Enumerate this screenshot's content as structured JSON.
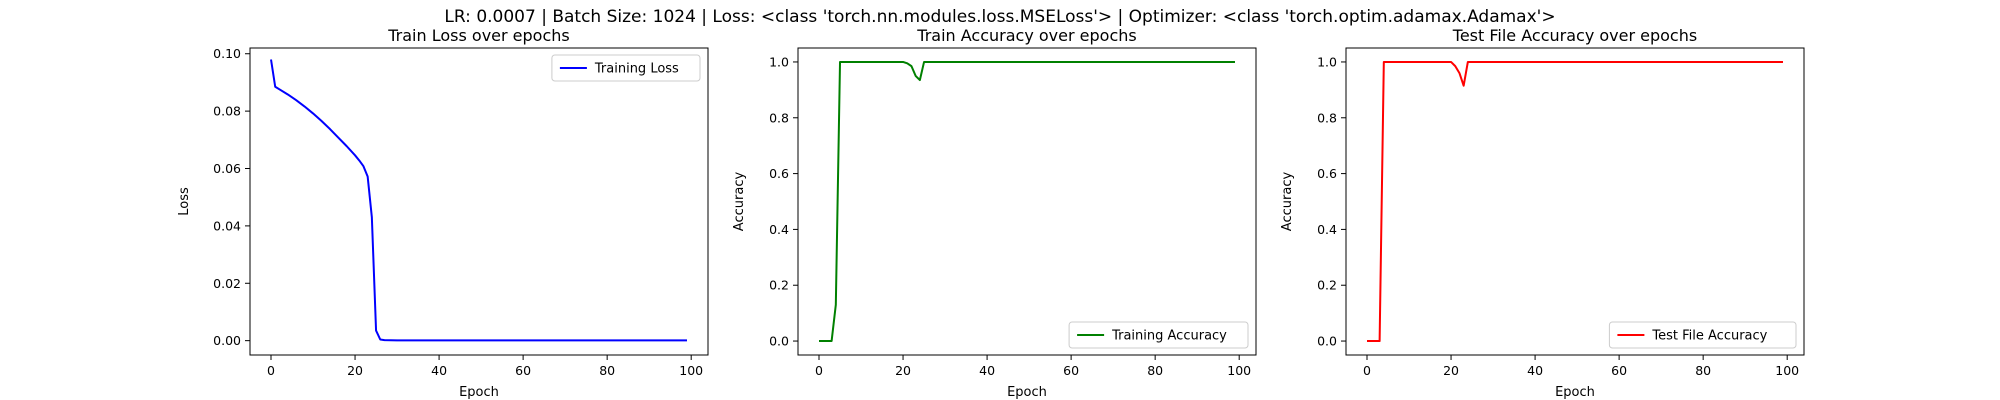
{
  "figure": {
    "suptitle": "LR: 0.0007 | Batch Size: 1024 | Loss: <class 'torch.nn.modules.loss.MSELoss'> | Optimizer: <class 'torch.optim.adamax.Adamax'>"
  },
  "chart_data": [
    {
      "type": "line",
      "title": "Train Loss over epochs",
      "xlabel": "Epoch",
      "ylabel": "Loss",
      "xlim": [
        -5,
        104
      ],
      "ylim": [
        -0.005,
        0.102
      ],
      "xticks": [
        0,
        20,
        40,
        60,
        80,
        100
      ],
      "yticks": [
        0.0,
        0.02,
        0.04,
        0.06,
        0.08,
        0.1
      ],
      "ytick_labels": [
        "0.00",
        "0.02",
        "0.04",
        "0.06",
        "0.08",
        "0.10"
      ],
      "legend_position": "upper-right",
      "grid": false,
      "series": [
        {
          "name": "Training Loss",
          "color": "#0000ff",
          "x": [
            0,
            1,
            2,
            4,
            6,
            8,
            10,
            12,
            14,
            16,
            18,
            20,
            21,
            22,
            23,
            24,
            25,
            26,
            27,
            30,
            40,
            50,
            60,
            70,
            80,
            90,
            99
          ],
          "y": [
            0.098,
            0.0885,
            0.0876,
            0.0858,
            0.0838,
            0.0816,
            0.0792,
            0.0766,
            0.0738,
            0.0708,
            0.0678,
            0.0646,
            0.0628,
            0.0608,
            0.0572,
            0.043,
            0.0035,
            0.0004,
            0.0002,
            0.0001,
            0.0001,
            0.0001,
            0.0001,
            0.0001,
            0.0001,
            0.0001,
            0.0001
          ]
        }
      ]
    },
    {
      "type": "line",
      "title": "Train Accuracy over epochs",
      "xlabel": "Epoch",
      "ylabel": "Accuracy",
      "xlim": [
        -5,
        104
      ],
      "ylim": [
        -0.05,
        1.05
      ],
      "xticks": [
        0,
        20,
        40,
        60,
        80,
        100
      ],
      "yticks": [
        0.0,
        0.2,
        0.4,
        0.6,
        0.8,
        1.0
      ],
      "ytick_labels": [
        "0.0",
        "0.2",
        "0.4",
        "0.6",
        "0.8",
        "1.0"
      ],
      "legend_position": "lower-right",
      "grid": false,
      "series": [
        {
          "name": "Training Accuracy",
          "color": "#008000",
          "x": [
            0,
            1,
            2,
            3,
            4,
            5,
            6,
            10,
            15,
            20,
            21,
            22,
            23,
            24,
            25,
            26,
            30,
            40,
            50,
            60,
            70,
            80,
            90,
            99
          ],
          "y": [
            0.0,
            0.0,
            0.0,
            0.0,
            0.13,
            1.0,
            1.0,
            1.0,
            1.0,
            1.0,
            0.995,
            0.985,
            0.95,
            0.935,
            1.0,
            1.0,
            1.0,
            1.0,
            1.0,
            1.0,
            1.0,
            1.0,
            1.0,
            1.0
          ]
        }
      ]
    },
    {
      "type": "line",
      "title": "Test File Accuracy over epochs",
      "xlabel": "Epoch",
      "ylabel": "Accuracy",
      "xlim": [
        -5,
        104
      ],
      "ylim": [
        -0.05,
        1.05
      ],
      "xticks": [
        0,
        20,
        40,
        60,
        80,
        100
      ],
      "yticks": [
        0.0,
        0.2,
        0.4,
        0.6,
        0.8,
        1.0
      ],
      "ytick_labels": [
        "0.0",
        "0.2",
        "0.4",
        "0.6",
        "0.8",
        "1.0"
      ],
      "legend_position": "lower-right",
      "grid": false,
      "series": [
        {
          "name": "Test File Accuracy",
          "color": "#ff0000",
          "x": [
            0,
            1,
            2,
            3,
            4,
            5,
            10,
            15,
            20,
            21,
            22,
            23,
            24,
            25,
            30,
            40,
            50,
            60,
            70,
            80,
            90,
            99
          ],
          "y": [
            0.0,
            0.0,
            0.0,
            0.0,
            1.0,
            1.0,
            1.0,
            1.0,
            1.0,
            0.985,
            0.96,
            0.915,
            1.0,
            1.0,
            1.0,
            1.0,
            1.0,
            1.0,
            1.0,
            1.0,
            1.0,
            1.0
          ]
        }
      ]
    }
  ]
}
